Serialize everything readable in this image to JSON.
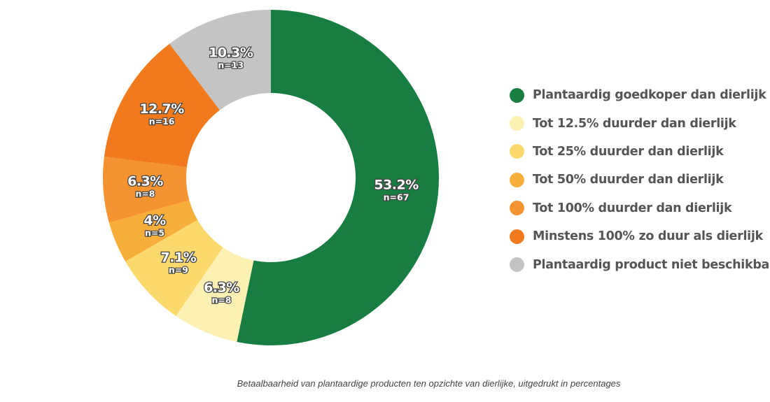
{
  "chart_data": {
    "type": "pie",
    "variant": "donut",
    "title": "",
    "caption": "Betaalbaarheid van plantaardige producten ten opzichte van dierlijke, uitgedrukt in percentages",
    "legend_position": "right",
    "slices": [
      {
        "name": "Plantaardig goedkoper dan dierlijk",
        "value": 53.2,
        "label": "53.2%",
        "n_label": "n=67",
        "color": "#177d41"
      },
      {
        "name": "Tot 12.5% duurder dan dierlijk",
        "value": 6.3,
        "label": "6.3%",
        "n_label": "n=8",
        "color": "#fdf0b3"
      },
      {
        "name": "Tot 25% duurder dan dierlijk",
        "value": 7.1,
        "label": "7.1%",
        "n_label": "n=9",
        "color": "#fcd96d"
      },
      {
        "name": "Tot 50% duurder dan dierlijk",
        "value": 4,
        "label": "4%",
        "n_label": "n=5",
        "color": "#f8ae3a"
      },
      {
        "name": "Tot 100% duurder dan dierlijk",
        "value": 6.3,
        "label": "6.3%",
        "n_label": "n=8",
        "color": "#f59331"
      },
      {
        "name": "Minstens 100% zo duur als dierlijk",
        "value": 12.7,
        "label": "12.7%",
        "n_label": "n=16",
        "color": "#f17b1c"
      },
      {
        "name": "Plantaardig product niet beschikbaar",
        "value": 10.3,
        "label": "10.3%",
        "n_label": "n=13",
        "color": "#c4c4c4"
      }
    ]
  }
}
